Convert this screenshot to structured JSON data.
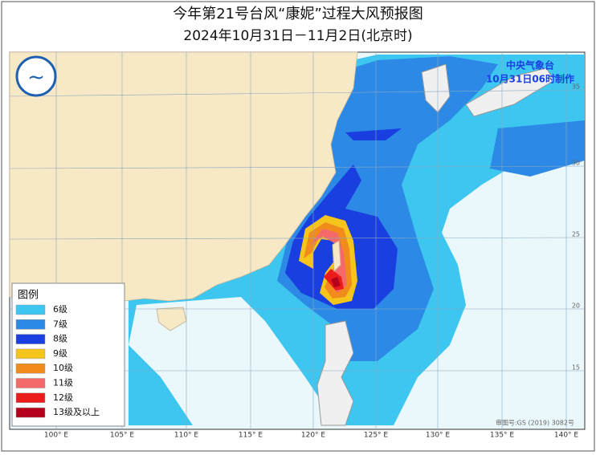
{
  "header": {
    "title": "今年第21号台风“康妮”过程大风预报图",
    "subtitle": "2024年10月31日－11月2日(北京时)"
  },
  "agency": {
    "name": "中央气象台",
    "issued": "10月31日06时制作"
  },
  "legend": {
    "title": "图例",
    "items": [
      {
        "label": "6级",
        "color": "#3cc6f0"
      },
      {
        "label": "7级",
        "color": "#2c8ae6"
      },
      {
        "label": "8级",
        "color": "#1a3fe0"
      },
      {
        "label": "9级",
        "color": "#f6c51c"
      },
      {
        "label": "10级",
        "color": "#f18b1c"
      },
      {
        "label": "11级",
        "color": "#f46a6a"
      },
      {
        "label": "12级",
        "color": "#ec1c1c"
      },
      {
        "label": "13级及以上",
        "color": "#b4001a"
      }
    ]
  },
  "grid": {
    "lon_labels": [
      "100° E",
      "105° E",
      "110° E",
      "115° E",
      "120° E",
      "125° E",
      "130° E",
      "135° E",
      "140° E"
    ],
    "lat_labels": [
      "35",
      "30",
      "25",
      "20",
      "15"
    ]
  },
  "map_number": "审图号:GS (2019) 3082号"
}
